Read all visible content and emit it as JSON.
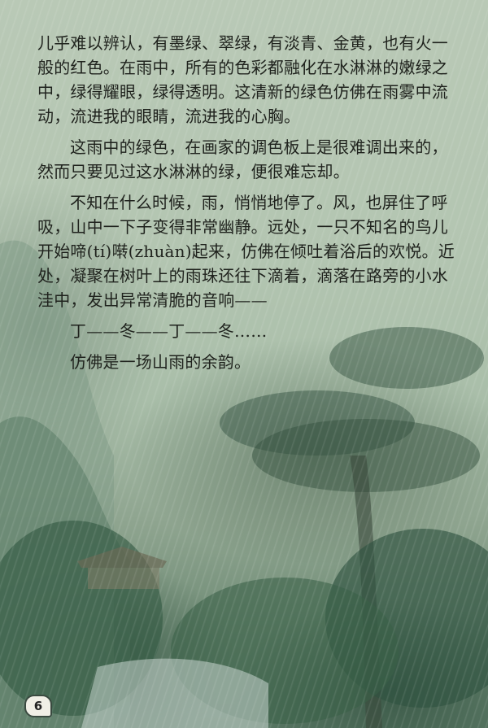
{
  "page": {
    "paragraphs": [
      "儿乎难以辨认，有墨绿、翠绿，有淡青、金黄，也有火一般的红色。在雨中，所有的色彩都融化在水淋淋的嫩绿之中，绿得耀眼，绿得透明。这清新的绿色仿佛在雨雾中流动，流进我的眼睛，流进我的心胸。",
      "这雨中的绿色，在画家的调色板上是很难调出来的，然而只要见过这水淋淋的绿，便很难忘却。",
      "不知在什么时候，雨，悄悄地停了。风，也屏住了呼吸，山中一下子变得非常幽静。远处，一只不知名的鸟儿开始啼(tí)啭(zhuàn)起来，仿佛在倾吐着浴后的欢悦。近处，凝聚在树叶上的雨珠还往下滴着，滴落在路旁的小水洼中，发出异常清脆的音响——",
      "丁——冬——丁——冬……",
      "仿佛是一场山雨的余韵。"
    ],
    "page_number": "6"
  },
  "colors": {
    "text": "#1f221d",
    "background_light": "#b9c9b6",
    "background_dark": "#5b7a66"
  }
}
